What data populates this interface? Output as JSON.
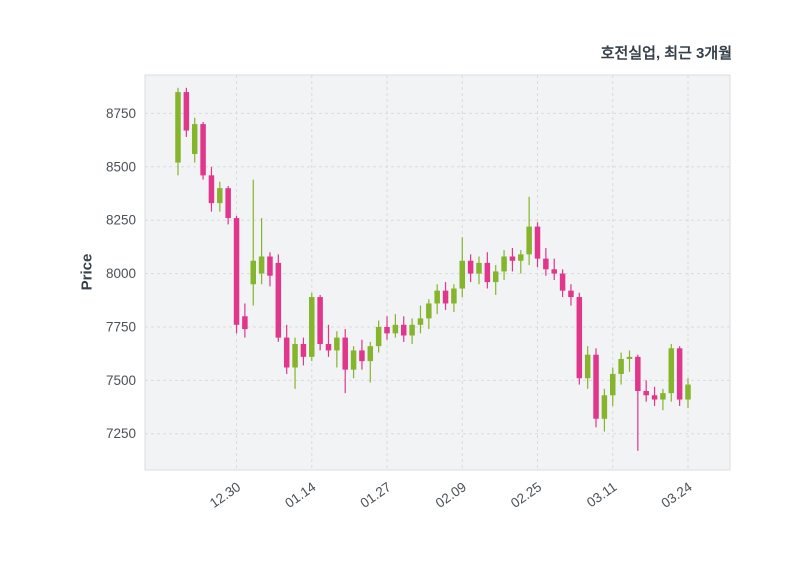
{
  "chart_data": {
    "type": "candlestick",
    "title": "호전실업, 최근 3개월",
    "ylabel": "Price",
    "y_ticks": [
      8750,
      8500,
      8250,
      8000,
      7750,
      7500,
      7250
    ],
    "ylim": [
      7080,
      8930
    ],
    "x_ticks": [
      {
        "index": 7,
        "label": "12.30"
      },
      {
        "index": 16,
        "label": "01.14"
      },
      {
        "index": 25,
        "label": "01.27"
      },
      {
        "index": 34,
        "label": "02.09"
      },
      {
        "index": 43,
        "label": "02.25"
      },
      {
        "index": 52,
        "label": "03.11"
      },
      {
        "index": 61,
        "label": "03.24"
      }
    ],
    "colors": {
      "up": "#85b52c",
      "down": "#e0368c",
      "grid": "#d9dbdd",
      "panel": "#f2f3f4",
      "panel_border": "#dcdee0",
      "tick_text": "#4a5158",
      "title_text": "#36404a"
    },
    "ohlc_order": [
      "open",
      "high",
      "low",
      "close"
    ],
    "candles": [
      [
        8520,
        8870,
        8460,
        8850
      ],
      [
        8850,
        8870,
        8640,
        8670
      ],
      [
        8560,
        8730,
        8520,
        8700
      ],
      [
        8700,
        8710,
        8440,
        8460
      ],
      [
        8460,
        8500,
        8290,
        8330
      ],
      [
        8330,
        8430,
        8290,
        8400
      ],
      [
        8400,
        8410,
        8230,
        8260
      ],
      [
        8260,
        8270,
        7720,
        7760
      ],
      [
        7800,
        7860,
        7700,
        7740
      ],
      [
        7950,
        8440,
        7850,
        8060
      ],
      [
        8000,
        8260,
        7950,
        8080
      ],
      [
        8080,
        8100,
        7940,
        7990
      ],
      [
        8050,
        8090,
        7680,
        7700
      ],
      [
        7700,
        7760,
        7530,
        7560
      ],
      [
        7560,
        7700,
        7460,
        7670
      ],
      [
        7670,
        7700,
        7570,
        7610
      ],
      [
        7610,
        7910,
        7590,
        7890
      ],
      [
        7890,
        7900,
        7640,
        7670
      ],
      [
        7670,
        7760,
        7610,
        7640
      ],
      [
        7640,
        7730,
        7560,
        7700
      ],
      [
        7700,
        7740,
        7440,
        7550
      ],
      [
        7550,
        7660,
        7510,
        7640
      ],
      [
        7640,
        7690,
        7550,
        7590
      ],
      [
        7590,
        7680,
        7490,
        7660
      ],
      [
        7660,
        7780,
        7630,
        7750
      ],
      [
        7750,
        7800,
        7690,
        7720
      ],
      [
        7720,
        7810,
        7700,
        7760
      ],
      [
        7760,
        7800,
        7680,
        7710
      ],
      [
        7710,
        7790,
        7670,
        7760
      ],
      [
        7760,
        7850,
        7720,
        7790
      ],
      [
        7790,
        7880,
        7740,
        7860
      ],
      [
        7860,
        7950,
        7810,
        7920
      ],
      [
        7920,
        7960,
        7830,
        7860
      ],
      [
        7860,
        7950,
        7820,
        7930
      ],
      [
        7930,
        8170,
        7890,
        8060
      ],
      [
        8060,
        8090,
        7960,
        8000
      ],
      [
        8000,
        8080,
        7950,
        8050
      ],
      [
        8050,
        8100,
        7930,
        7960
      ],
      [
        7960,
        8040,
        7900,
        8010
      ],
      [
        8010,
        8110,
        7970,
        8080
      ],
      [
        8080,
        8120,
        8010,
        8060
      ],
      [
        8060,
        8110,
        8000,
        8090
      ],
      [
        8090,
        8360,
        8040,
        8220
      ],
      [
        8220,
        8240,
        8030,
        8070
      ],
      [
        8070,
        8120,
        7990,
        8020
      ],
      [
        8020,
        8070,
        7970,
        8000
      ],
      [
        8000,
        8020,
        7890,
        7920
      ],
      [
        7920,
        7950,
        7850,
        7890
      ],
      [
        7890,
        7910,
        7480,
        7510
      ],
      [
        7510,
        7660,
        7460,
        7620
      ],
      [
        7620,
        7650,
        7280,
        7320
      ],
      [
        7320,
        7460,
        7260,
        7430
      ],
      [
        7430,
        7560,
        7380,
        7530
      ],
      [
        7530,
        7630,
        7480,
        7600
      ],
      [
        7600,
        7640,
        7540,
        7610
      ],
      [
        7610,
        7620,
        7170,
        7450
      ],
      [
        7450,
        7500,
        7400,
        7430
      ],
      [
        7430,
        7470,
        7380,
        7410
      ],
      [
        7410,
        7460,
        7360,
        7440
      ],
      [
        7440,
        7670,
        7400,
        7650
      ],
      [
        7650,
        7660,
        7380,
        7410
      ],
      [
        7410,
        7510,
        7370,
        7480
      ]
    ]
  }
}
